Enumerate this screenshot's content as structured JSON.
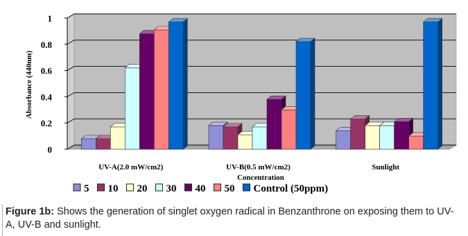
{
  "chart_data": {
    "type": "bar",
    "ylabel": "Absorbance (440nm)",
    "xlabel": "Concentration",
    "ylim": [
      0,
      1
    ],
    "yticks": [
      "0",
      "0.2",
      "0.4",
      "0.6",
      "0.8",
      "1"
    ],
    "grid": true,
    "legend_position": "bottom",
    "categories": [
      "UV-A(2.0 mW/cm2)",
      "UV-B(0.5 mW/cm2)",
      "Sunlight"
    ],
    "series": [
      {
        "name": "5",
        "color": "#8f8fd9",
        "values": [
          0.08,
          0.18,
          0.14
        ]
      },
      {
        "name": "10",
        "color": "#993366",
        "values": [
          0.08,
          0.17,
          0.23
        ]
      },
      {
        "name": "20",
        "color": "#ffffcc",
        "values": [
          0.17,
          0.11,
          0.18
        ]
      },
      {
        "name": "30",
        "color": "#ccffff",
        "values": [
          0.62,
          0.17,
          0.18
        ]
      },
      {
        "name": "40",
        "color": "#660066",
        "values": [
          0.88,
          0.38,
          0.21
        ]
      },
      {
        "name": "50",
        "color": "#ff8080",
        "values": [
          0.91,
          0.3,
          0.1
        ]
      },
      {
        "name": "Control (50ppm)",
        "color": "#0066cc",
        "values": [
          0.97,
          0.82,
          0.97
        ]
      }
    ]
  },
  "caption": {
    "label": "Figure 1b:",
    "text": " Shows the generation of singlet oxygen radical in Benzanthrone on exposing them to UV-A, UV-B and sunlight."
  }
}
